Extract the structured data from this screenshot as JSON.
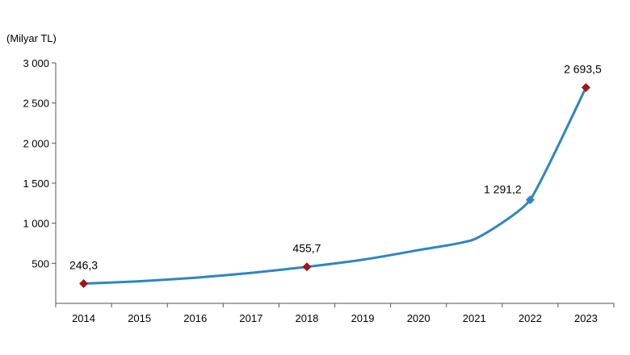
{
  "chart_data": {
    "type": "line",
    "unit_label": "(Milyar TL)",
    "categories": [
      "2014",
      "2015",
      "2016",
      "2017",
      "2018",
      "2019",
      "2020",
      "2021",
      "2022",
      "2023"
    ],
    "series": [
      {
        "values": [
          246.3,
          275,
          320,
          380,
          455.7,
          545,
          665,
          800,
          1291.2,
          2693.5
        ],
        "color": "#2e86c1"
      }
    ],
    "highlighted_points": [
      {
        "index": 0,
        "label": "246,3",
        "marker": "diamond",
        "color": "#a31515"
      },
      {
        "index": 4,
        "label": "455,7",
        "marker": "diamond",
        "color": "#a31515"
      },
      {
        "index": 8,
        "label": "1 291,2",
        "marker": "diamond",
        "color": "#2e86c1"
      },
      {
        "index": 9,
        "label": "2 693,5",
        "marker": "diamond",
        "color": "#a31515"
      }
    ],
    "y_ticks": [
      {
        "value": 500,
        "label": "500"
      },
      {
        "value": 1000,
        "label": "1 000"
      },
      {
        "value": 1500,
        "label": "1 500"
      },
      {
        "value": 2000,
        "label": "2 000"
      },
      {
        "value": 2500,
        "label": "2 500"
      },
      {
        "value": 3000,
        "label": "3 000"
      }
    ],
    "ylim": [
      0,
      3000
    ],
    "grid": false,
    "legend": "none"
  }
}
